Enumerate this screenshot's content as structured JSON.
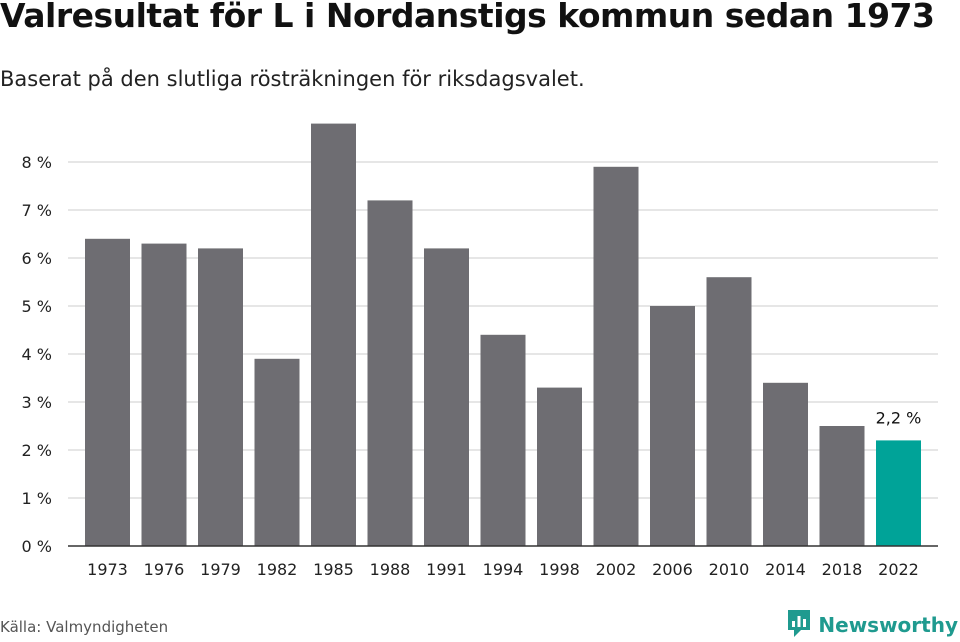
{
  "header": {
    "title": "Valresultat för L i Nordanstigs kommun sedan 1973",
    "subtitle": "Baserat på den slutliga rösträkningen för riksdagsvalet."
  },
  "footer": {
    "source": "Källa: Valmyndigheten",
    "brand": "Newsworthy",
    "brand_icon": "newsworthy-logo-icon"
  },
  "colors": {
    "bar": "#6e6d72",
    "highlight": "#00a398",
    "grid": "#dddddd",
    "axis": "#333333",
    "brand": "#1f9a8f"
  },
  "chart_data": {
    "type": "bar",
    "title": "Valresultat för L i Nordanstigs kommun sedan 1973",
    "subtitle": "Baserat på den slutliga rösträkningen för riksdagsvalet.",
    "categories": [
      "1973",
      "1976",
      "1979",
      "1982",
      "1985",
      "1988",
      "1991",
      "1994",
      "1998",
      "2002",
      "2006",
      "2010",
      "2014",
      "2018",
      "2022"
    ],
    "values": [
      6.4,
      6.3,
      6.2,
      3.9,
      8.8,
      7.2,
      6.2,
      4.4,
      3.3,
      7.9,
      5.0,
      5.6,
      3.4,
      2.5,
      2.2
    ],
    "unit": "%",
    "ylim": [
      0,
      9
    ],
    "yticks": [
      0,
      1,
      2,
      3,
      4,
      5,
      6,
      7,
      8
    ],
    "ytick_labels": [
      "0 %",
      "1 %",
      "2 %",
      "3 %",
      "4 %",
      "5 %",
      "6 %",
      "7 %",
      "8 %"
    ],
    "xlabel": "",
    "ylabel": "",
    "grid": true,
    "legend": "none",
    "highlight_category": "2022",
    "data_labels": [
      {
        "category": "2022",
        "text": "2,2 %"
      }
    ]
  }
}
